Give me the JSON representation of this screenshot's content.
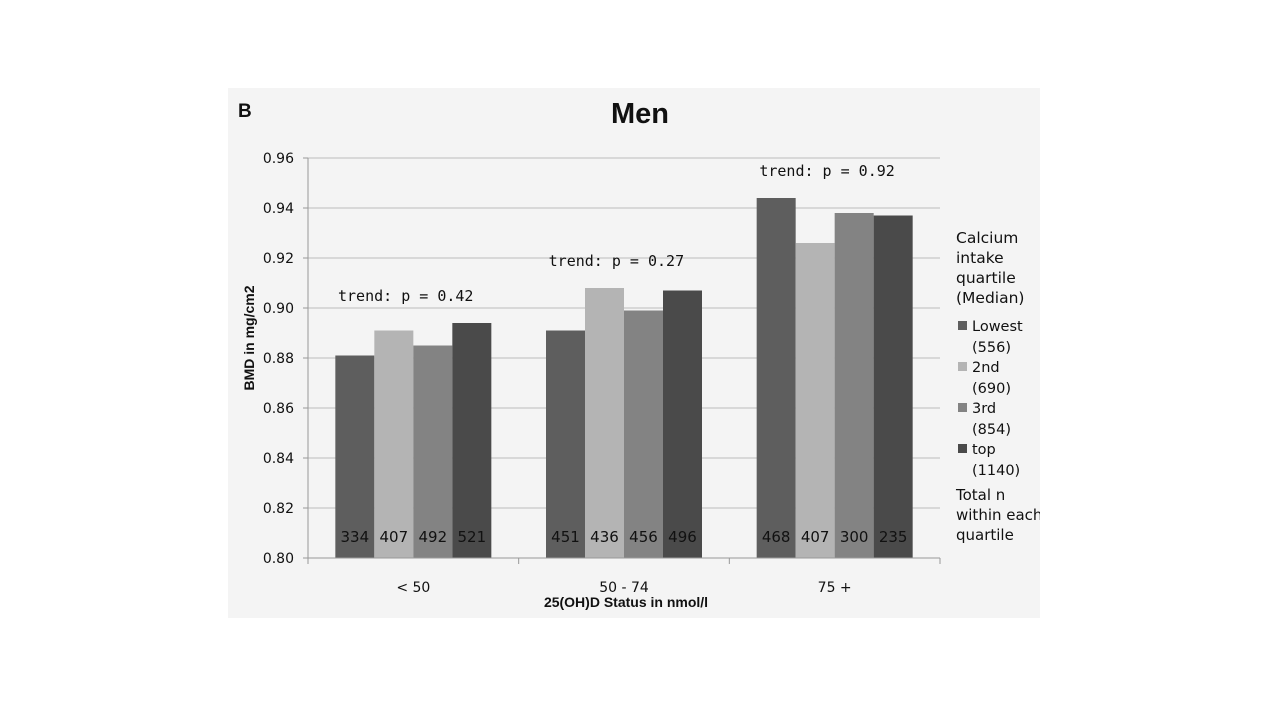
{
  "panel_label": "B",
  "chart_data": {
    "type": "bar",
    "title": "Men",
    "xlabel": "25(OH)D Status in nmol/l",
    "ylabel": "BMD in mg/cm2",
    "ylim": [
      0.8,
      0.96
    ],
    "yticks": [
      "0.80",
      "0.82",
      "0.84",
      "0.86",
      "0.88",
      "0.90",
      "0.92",
      "0.94",
      "0.96"
    ],
    "grid": true,
    "categories": [
      "< 50",
      "50 - 74",
      "75 +"
    ],
    "series": [
      {
        "name": "Lowest",
        "median": "(556)",
        "color": "#5e5e5e",
        "values": [
          0.881,
          0.891,
          0.944
        ],
        "counts": [
          "334",
          "451",
          "468"
        ]
      },
      {
        "name": "2nd",
        "median": "(690)",
        "color": "#b4b4b4",
        "values": [
          0.891,
          0.908,
          0.926
        ],
        "counts": [
          "407",
          "436",
          "407"
        ]
      },
      {
        "name": "3rd",
        "median": "(854)",
        "color": "#838383",
        "values": [
          0.885,
          0.899,
          0.938
        ],
        "counts": [
          "492",
          "456",
          "300"
        ]
      },
      {
        "name": "top",
        "median": "(1140)",
        "color": "#4a4a4a",
        "values": [
          0.894,
          0.907,
          0.937
        ],
        "counts": [
          "521",
          "496",
          "235"
        ]
      }
    ],
    "annotations": [
      "trend: p = 0.42",
      "trend: p = 0.27",
      "trend: p = 0.92"
    ],
    "legend_title": [
      "Calcium",
      "intake",
      "quartile",
      "(Median)"
    ],
    "legend_note": [
      "Total n",
      "within each",
      "quartile"
    ],
    "legend_position": "right"
  }
}
